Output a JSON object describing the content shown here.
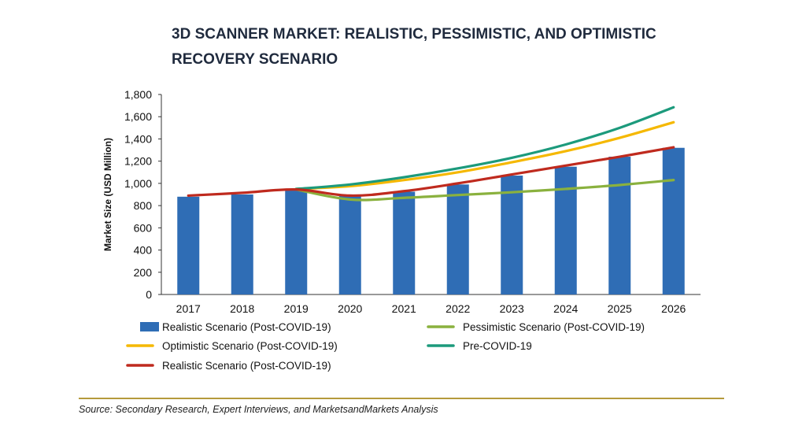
{
  "title": "3D SCANNER MARKET: REALISTIC, PESSIMISTIC, AND OPTIMISTIC RECOVERY SCENARIO",
  "source": "Source: Secondary Research, Expert Interviews, and MarketsandMarkets Analysis",
  "colors": {
    "bar": "#2f6db5",
    "pessimistic": "#8ab13e",
    "optimistic": "#f5b800",
    "pre_covid": "#1c9a7c",
    "realistic_line": "#bf2a1e",
    "rule": "#b59a3c"
  },
  "chart_data": {
    "type": "bar",
    "categories": [
      "2017",
      "2018",
      "2019",
      "2020",
      "2021",
      "2022",
      "2023",
      "2024",
      "2025",
      "2026"
    ],
    "ylabel": "Market Size (USD Million)",
    "ylim": [
      0,
      1800
    ],
    "yticks": [
      "0",
      "200",
      "400",
      "600",
      "800",
      "1,000",
      "1,200",
      "1,400",
      "1,600",
      "1,800"
    ],
    "grid": false,
    "legend_position": "bottom",
    "series": [
      {
        "name": "Realistic Scenario (Post-COVID-19)",
        "kind": "bar",
        "color": "#2f6db5",
        "values": [
          880,
          900,
          935,
          890,
          925,
          990,
          1070,
          1150,
          1240,
          1320
        ]
      },
      {
        "name": "Pessimistic Scenario (Post-COVID-19)",
        "kind": "line",
        "color": "#8ab13e",
        "values": [
          null,
          null,
          945,
          855,
          870,
          895,
          920,
          950,
          985,
          1030
        ]
      },
      {
        "name": "Optimistic Scenario (Post-COVID-19)",
        "kind": "line",
        "color": "#f5b800",
        "values": [
          null,
          null,
          950,
          975,
          1030,
          1100,
          1190,
          1290,
          1410,
          1550
        ]
      },
      {
        "name": "Pre-COVID-19",
        "kind": "line",
        "color": "#1c9a7c",
        "values": [
          null,
          null,
          950,
          990,
          1055,
          1135,
          1230,
          1350,
          1500,
          1685
        ]
      },
      {
        "name": "Realistic Scenario (Post-COVID-19)",
        "kind": "line",
        "color": "#bf2a1e",
        "values": [
          890,
          915,
          945,
          890,
          930,
          1000,
          1080,
          1160,
          1240,
          1325
        ]
      }
    ]
  }
}
